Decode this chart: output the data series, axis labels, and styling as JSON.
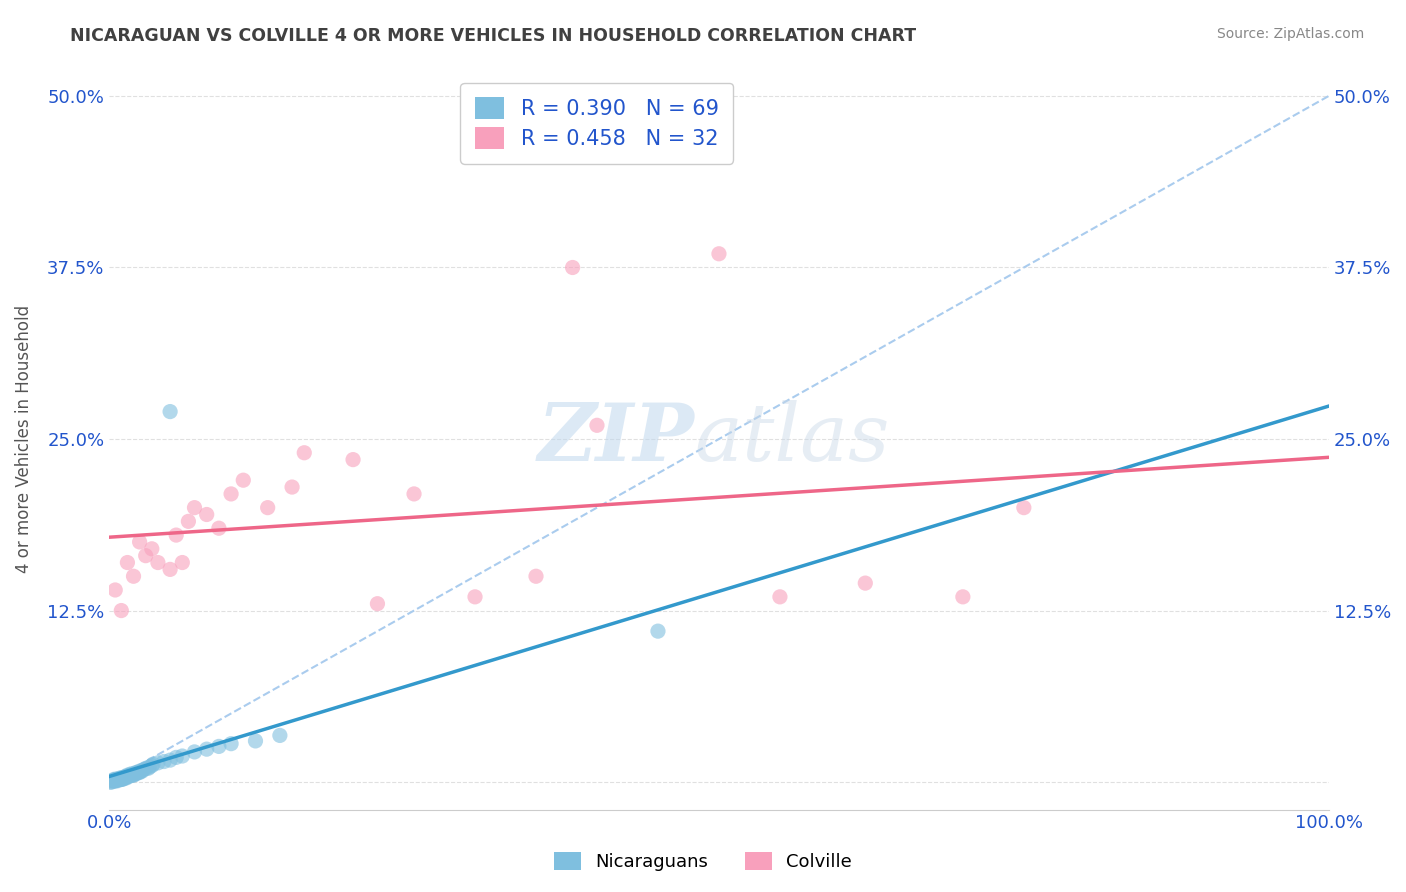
{
  "title": "NICARAGUAN VS COLVILLE 4 OR MORE VEHICLES IN HOUSEHOLD CORRELATION CHART",
  "source": "Source: ZipAtlas.com",
  "xlabel": "",
  "ylabel": "4 or more Vehicles in Household",
  "watermark_zip": "ZIP",
  "watermark_atlas": "atlas",
  "xlim": [
    0.0,
    1.0
  ],
  "ylim": [
    -0.02,
    0.52
  ],
  "xticks": [
    0.0,
    1.0
  ],
  "xticklabels": [
    "0.0%",
    "100.0%"
  ],
  "yticks": [
    0.0,
    0.125,
    0.25,
    0.375,
    0.5
  ],
  "yticklabels": [
    "",
    "12.5%",
    "25.0%",
    "37.5%",
    "50.0%"
  ],
  "nicaraguan_color": "#7fbfdf",
  "colville_color": "#f8a0bc",
  "nicaraguan_R": 0.39,
  "nicaraguan_N": 69,
  "colville_R": 0.458,
  "colville_N": 32,
  "legend_label_1": "Nicaraguans",
  "legend_label_2": "Colville",
  "title_color": "#404040",
  "axis_label_color": "#555555",
  "tick_color": "#2255cc",
  "ref_line_color": "#aaccee",
  "nicaraguan_line_color": "#3399cc",
  "colville_line_color": "#ee6688",
  "background_color": "#ffffff",
  "grid_color": "#e0e0e0",
  "nicaraguan_x": [
    0.001,
    0.002,
    0.003,
    0.003,
    0.004,
    0.004,
    0.004,
    0.005,
    0.005,
    0.005,
    0.006,
    0.006,
    0.006,
    0.007,
    0.007,
    0.007,
    0.008,
    0.008,
    0.009,
    0.009,
    0.01,
    0.01,
    0.01,
    0.011,
    0.011,
    0.012,
    0.012,
    0.013,
    0.013,
    0.014,
    0.014,
    0.015,
    0.015,
    0.016,
    0.016,
    0.017,
    0.018,
    0.018,
    0.019,
    0.02,
    0.02,
    0.021,
    0.022,
    0.022,
    0.023,
    0.024,
    0.025,
    0.025,
    0.026,
    0.027,
    0.028,
    0.03,
    0.032,
    0.033,
    0.035,
    0.036,
    0.04,
    0.045,
    0.05,
    0.055,
    0.06,
    0.07,
    0.08,
    0.09,
    0.1,
    0.12,
    0.14,
    0.45,
    0.05
  ],
  "nicaraguan_y": [
    0.0,
    0.0,
    0.001,
    0.001,
    0.001,
    0.001,
    0.002,
    0.001,
    0.001,
    0.002,
    0.001,
    0.002,
    0.002,
    0.001,
    0.002,
    0.002,
    0.002,
    0.002,
    0.002,
    0.003,
    0.002,
    0.002,
    0.003,
    0.002,
    0.003,
    0.003,
    0.003,
    0.003,
    0.004,
    0.003,
    0.004,
    0.004,
    0.005,
    0.004,
    0.005,
    0.005,
    0.005,
    0.006,
    0.005,
    0.005,
    0.006,
    0.006,
    0.006,
    0.007,
    0.007,
    0.007,
    0.007,
    0.008,
    0.008,
    0.008,
    0.009,
    0.01,
    0.01,
    0.011,
    0.012,
    0.013,
    0.014,
    0.015,
    0.016,
    0.018,
    0.019,
    0.022,
    0.024,
    0.026,
    0.028,
    0.03,
    0.034,
    0.11,
    0.27
  ],
  "colville_x": [
    0.005,
    0.01,
    0.015,
    0.02,
    0.025,
    0.03,
    0.035,
    0.04,
    0.05,
    0.055,
    0.06,
    0.065,
    0.07,
    0.08,
    0.09,
    0.1,
    0.11,
    0.13,
    0.15,
    0.16,
    0.2,
    0.22,
    0.25,
    0.3,
    0.35,
    0.38,
    0.4,
    0.5,
    0.55,
    0.62,
    0.7,
    0.75
  ],
  "colville_y": [
    0.14,
    0.125,
    0.16,
    0.15,
    0.175,
    0.165,
    0.17,
    0.16,
    0.155,
    0.18,
    0.16,
    0.19,
    0.2,
    0.195,
    0.185,
    0.21,
    0.22,
    0.2,
    0.215,
    0.24,
    0.235,
    0.13,
    0.21,
    0.135,
    0.15,
    0.375,
    0.26,
    0.385,
    0.135,
    0.145,
    0.135,
    0.2
  ]
}
